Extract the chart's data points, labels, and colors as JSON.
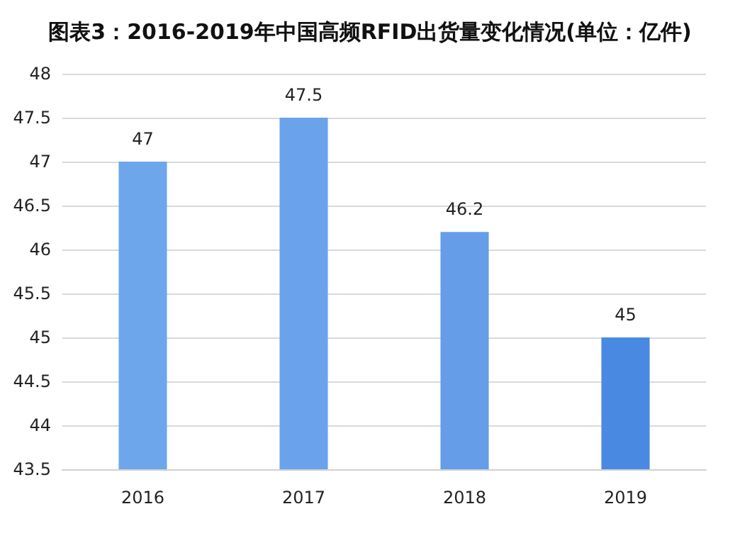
{
  "chart_data": {
    "type": "bar",
    "title": "图表3：2016-2019年中国高频RFID出货量变化情况(单位：亿件)",
    "categories": [
      "2016",
      "2017",
      "2018",
      "2019"
    ],
    "values": [
      47,
      47.5,
      46.2,
      45
    ],
    "colors": [
      "#6ea6ec",
      "#6aa3eb",
      "#659de9",
      "#4a89e2"
    ],
    "ylim": [
      43.5,
      48
    ],
    "yticks": [
      43.5,
      44,
      44.5,
      45,
      45.5,
      46,
      46.5,
      47,
      47.5,
      48
    ],
    "grid": "y",
    "data_labels": true
  }
}
